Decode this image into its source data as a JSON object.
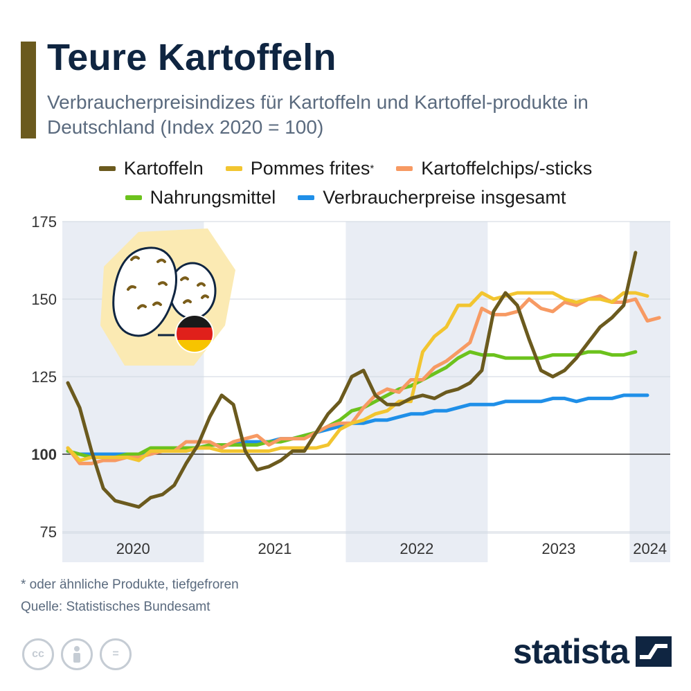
{
  "header": {
    "title": "Teure Kartoffeln",
    "subtitle": "Verbraucherpreisindizes für Kartoffeln und Kartoffel-produkte in Deutschland (Index 2020 = 100)"
  },
  "colors": {
    "accent": "#6b5a1e",
    "kartoffeln": "#6b5a1e",
    "pommes": "#f2c530",
    "chips": "#f79a63",
    "nahrung": "#6cc21d",
    "verbraucher": "#1f8fe8",
    "band": "#e9edf4",
    "grid": "#cfd6df"
  },
  "legend": {
    "kartoffeln": "Kartoffeln",
    "pommes": "Pommes frites",
    "pommes_mark": "*",
    "chips": "Kartoffelchips/-sticks",
    "nahrung": "Nahrungsmittel",
    "verbraucher": "Verbraucherpreise insgesamt"
  },
  "chart_data": {
    "type": "line",
    "x_start": "2020-01",
    "x_end": "2024-04",
    "x_unit": "month",
    "ylim": [
      75,
      175
    ],
    "yticks": [
      75,
      100,
      125,
      150,
      175
    ],
    "years": [
      "2020",
      "2021",
      "2022",
      "2023",
      "2024"
    ],
    "grid": true,
    "series": [
      {
        "name": "Kartoffeln",
        "values": [
          123,
          115,
          101,
          89,
          85,
          84,
          83,
          86,
          87,
          90,
          97,
          103,
          112,
          119,
          116,
          101,
          95,
          96,
          98,
          101,
          101,
          107,
          113,
          117,
          125,
          127,
          119,
          116,
          116,
          118,
          119,
          118,
          120,
          121,
          123,
          127,
          146,
          152,
          148,
          137,
          127,
          125,
          127,
          131,
          136,
          141,
          144,
          148,
          165
        ]
      },
      {
        "name": "Pommes frites",
        "values": [
          102,
          98,
          99,
          99,
          99,
          99,
          98,
          101,
          101,
          101,
          101,
          102,
          102,
          101,
          101,
          101,
          101,
          101,
          102,
          102,
          102,
          102,
          103,
          108,
          110,
          111,
          113,
          114,
          117,
          117,
          133,
          138,
          141,
          148,
          148,
          152,
          150,
          151,
          152,
          152,
          152,
          152,
          150,
          149,
          150,
          150,
          149,
          152,
          152,
          151
        ]
      },
      {
        "name": "Kartoffelchips/-sticks",
        "values": [
          102,
          97,
          97,
          98,
          98,
          99,
          99,
          100,
          101,
          101,
          104,
          104,
          104,
          102,
          104,
          105,
          106,
          103,
          105,
          105,
          105,
          107,
          109,
          110,
          110,
          115,
          119,
          121,
          120,
          124,
          124,
          128,
          130,
          133,
          136,
          147,
          145,
          145,
          146,
          150,
          147,
          146,
          149,
          148,
          150,
          151,
          149,
          149,
          150,
          143,
          144
        ]
      },
      {
        "name": "Nahrungsmittel",
        "values": [
          101,
          100,
          99,
          99,
          99,
          100,
          100,
          102,
          102,
          102,
          102,
          102,
          103,
          103,
          103,
          103,
          103,
          104,
          104,
          105,
          106,
          107,
          109,
          111,
          114,
          115,
          117,
          119,
          121,
          122,
          124,
          126,
          128,
          131,
          133,
          132,
          132,
          131,
          131,
          131,
          131,
          132,
          132,
          132,
          133,
          133,
          132,
          132,
          133
        ]
      },
      {
        "name": "Verbraucherpreise insgesamt",
        "values": [
          101,
          100,
          100,
          100,
          100,
          100,
          100,
          101,
          101,
          101,
          101,
          102,
          103,
          103,
          103,
          104,
          104,
          104,
          105,
          105,
          106,
          107,
          108,
          109,
          110,
          110,
          111,
          111,
          112,
          113,
          113,
          114,
          114,
          115,
          116,
          116,
          116,
          117,
          117,
          117,
          117,
          118,
          118,
          117,
          118,
          118,
          118,
          119,
          119,
          119
        ]
      }
    ]
  },
  "footer": {
    "footnote": "* oder ähnliche Produkte, tiefgefroren",
    "source": "Quelle: Statistisches Bundesamt",
    "brand": "statista"
  },
  "icons": {
    "cc": "cc",
    "equals": "="
  }
}
